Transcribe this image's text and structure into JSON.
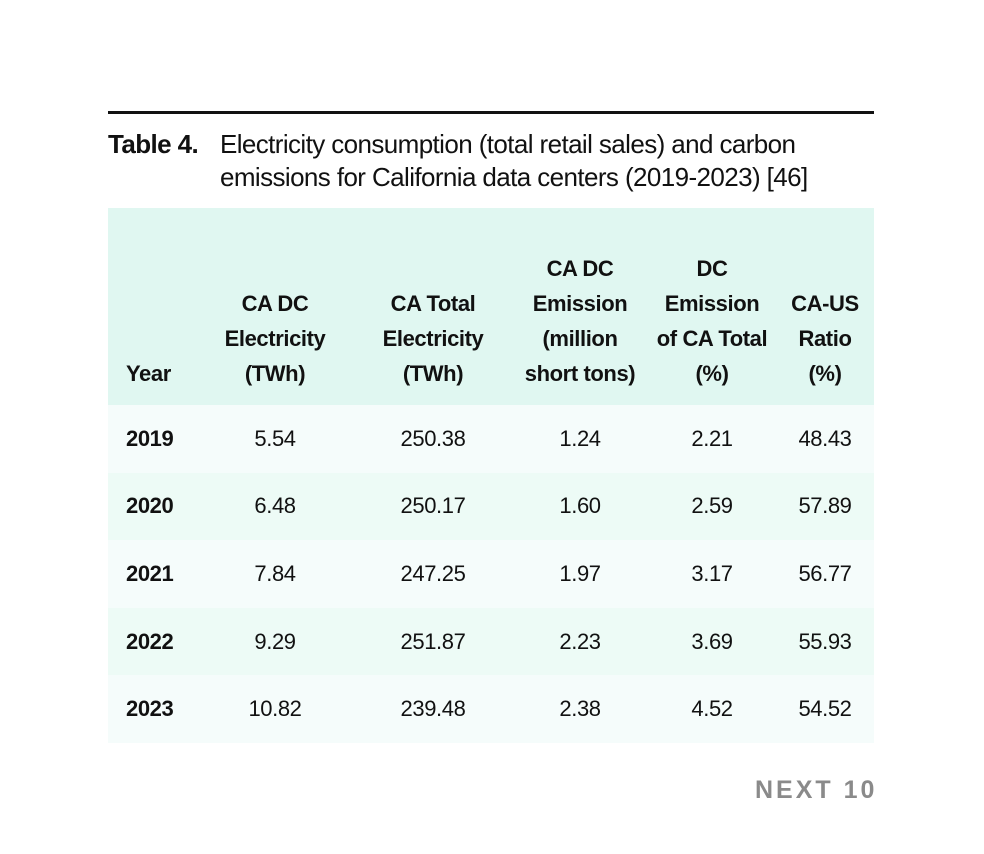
{
  "caption": {
    "label": "Table 4.",
    "text": "Electricity consumption (total retail sales) and carbon emissions for California data centers (2019-2023) [46]"
  },
  "table": {
    "headers": [
      "Year",
      "CA DC Electricity (TWh)",
      "CA Total Electricity (TWh)",
      "CA DC Emission (million short tons)",
      "DC Emission of CA Total (%)",
      "CA-US Ratio (%)"
    ],
    "rows": [
      [
        "2019",
        "5.54",
        "250.38",
        "1.24",
        "2.21",
        "48.43"
      ],
      [
        "2020",
        "6.48",
        "250.17",
        "1.60",
        "2.59",
        "57.89"
      ],
      [
        "2021",
        "7.84",
        "247.25",
        "1.97",
        "3.17",
        "56.77"
      ],
      [
        "2022",
        "9.29",
        "251.87",
        "2.23",
        "3.69",
        "55.93"
      ],
      [
        "2023",
        "10.82",
        "239.48",
        "2.38",
        "4.52",
        "54.52"
      ]
    ]
  },
  "brand": "NEXT 10",
  "colors": {
    "header_bg": "#e0f7f1",
    "row_odd": "#f5fcfb",
    "row_even": "#edfbf6",
    "brand": "#8a8a8a"
  }
}
